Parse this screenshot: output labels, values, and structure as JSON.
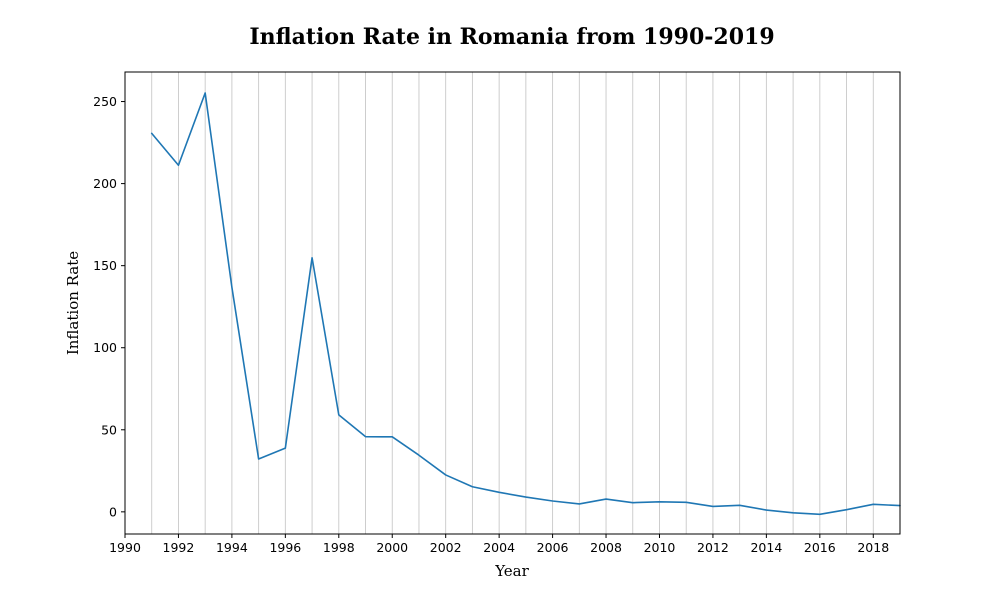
{
  "chart_data": {
    "type": "line",
    "title": "Inflation Rate in Romania from 1990-2019",
    "xlabel": "Year",
    "ylabel": "Inflation Rate",
    "xlim": [
      1990,
      2019
    ],
    "ylim": [
      -13.5,
      268
    ],
    "grid": "vertical, yearly",
    "legend": "none",
    "xticks": [
      1990,
      1992,
      1994,
      1996,
      1998,
      2000,
      2002,
      2004,
      2006,
      2008,
      2010,
      2012,
      2014,
      2016,
      2018
    ],
    "xtick_labels": [
      "1990",
      "1992",
      "1994",
      "1996",
      "1998",
      "2000",
      "2002",
      "2004",
      "2006",
      "2008",
      "2010",
      "2012",
      "2014",
      "2016",
      "2018"
    ],
    "yticks": [
      0,
      50,
      100,
      150,
      200,
      250
    ],
    "ytick_labels": [
      "0",
      "50",
      "100",
      "150",
      "200",
      "250"
    ],
    "series": [
      {
        "color": "#1f77b4",
        "x": [
          1991,
          1992,
          1993,
          1994,
          1995,
          1996,
          1997,
          1998,
          1999,
          2000,
          2001,
          2002,
          2003,
          2004,
          2005,
          2006,
          2007,
          2008,
          2009,
          2010,
          2011,
          2012,
          2013,
          2014,
          2015,
          2016,
          2017,
          2018,
          2019
        ],
        "y": [
          230.6,
          211.2,
          255.2,
          136.8,
          32.2,
          38.8,
          154.8,
          59.1,
          45.8,
          45.7,
          34.5,
          22.5,
          15.3,
          11.9,
          9.0,
          6.6,
          4.8,
          7.8,
          5.6,
          6.1,
          5.8,
          3.3,
          4.0,
          1.1,
          -0.6,
          -1.5,
          1.3,
          4.6,
          3.8
        ]
      }
    ]
  }
}
